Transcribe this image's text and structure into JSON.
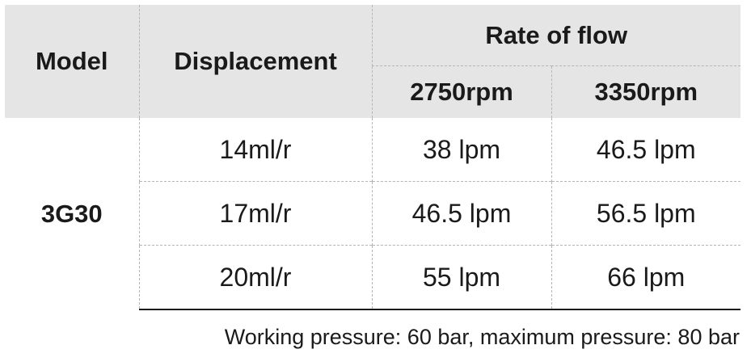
{
  "table": {
    "header": {
      "model": "Model",
      "displacement": "Displacement",
      "rate_of_flow": "Rate of flow",
      "rpm_1": "2750rpm",
      "rpm_2": "3350rpm"
    },
    "model_name": "3G30",
    "rows": [
      {
        "displacement": "14ml/r",
        "flow_2750": "38 lpm",
        "flow_3350": "46.5 lpm"
      },
      {
        "displacement": "17ml/r",
        "flow_2750": "46.5 lpm",
        "flow_3350": "56.5 lpm"
      },
      {
        "displacement": "20ml/r",
        "flow_2750": "55 lpm",
        "flow_3350": "66 lpm"
      }
    ]
  },
  "footnote": "Working pressure: 60 bar, maximum pressure: 80 bar",
  "colors": {
    "header_background": "#e5e5e5",
    "divider": "#b5b5b5",
    "text": "#1a1a1a"
  }
}
